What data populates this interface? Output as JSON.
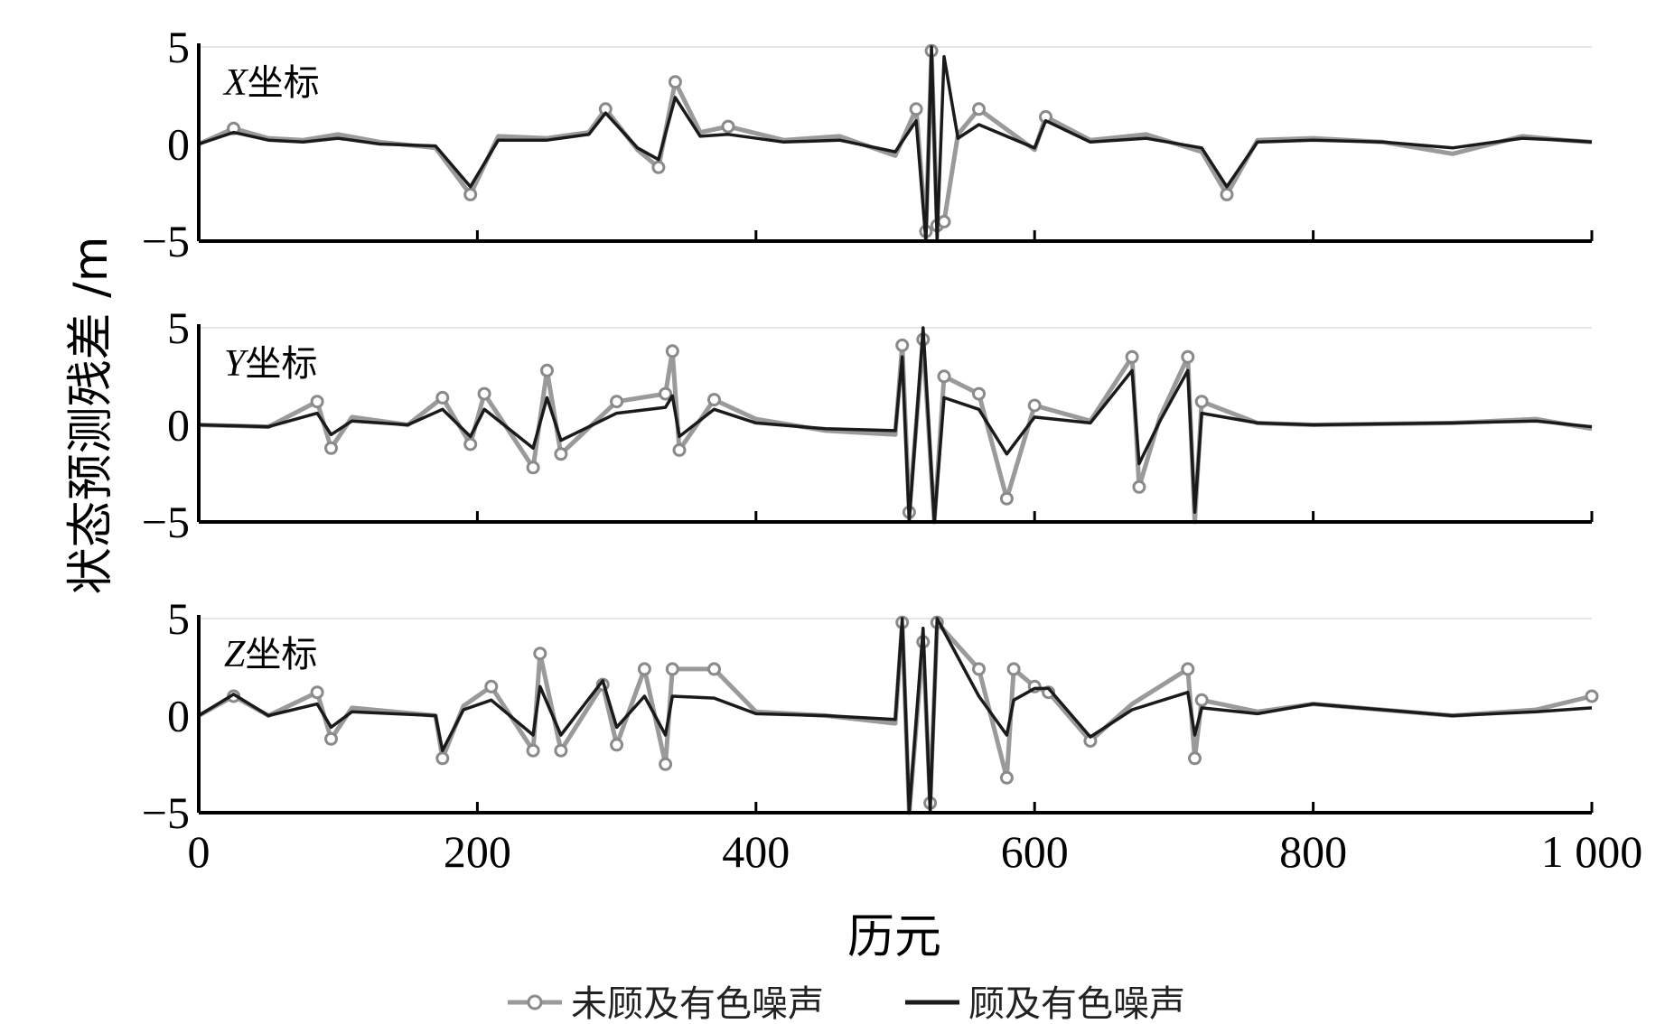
{
  "chart_data": {
    "type": "line",
    "ylabel": "状态预测残差 /m",
    "xlabel": "历元",
    "xlim": [
      0,
      1000
    ],
    "ylim": [
      -5,
      5
    ],
    "x_ticks": [
      "0",
      "200",
      "400",
      "600",
      "800",
      "1 000"
    ],
    "y_ticks": [
      "5",
      "0",
      "−5"
    ],
    "legend": {
      "placement": "bottom-center",
      "entries": [
        {
          "label": "未顾及有色噪声",
          "color": "#9a9a9a",
          "marker": "circle"
        },
        {
          "label": "顾及有色噪声",
          "color": "#1a1a1a",
          "marker": "none"
        }
      ]
    },
    "panels": [
      {
        "label_letter": "X",
        "label_text": "坐标",
        "series": [
          {
            "name": "未顾及有色噪声",
            "color": "#9a9a9a",
            "x": [
              0,
              25,
              50,
              75,
              100,
              130,
              170,
              195,
              215,
              250,
              280,
              292,
              315,
              330,
              342,
              360,
              380,
              420,
              460,
              500,
              515,
              522,
              526,
              530,
              535,
              545,
              560,
              600,
              608,
              640,
              680,
              720,
              738,
              760,
              800,
              850,
              900,
              950,
              980,
              1000
            ],
            "y": [
              0,
              0.8,
              0.3,
              0.2,
              0.5,
              0.1,
              -0.2,
              -2.6,
              0.4,
              0.3,
              0.6,
              1.8,
              -0.3,
              -1.2,
              3.2,
              0.6,
              0.9,
              0.2,
              0.4,
              -0.6,
              1.8,
              -4.5,
              4.8,
              -4.2,
              -4.0,
              0.5,
              1.8,
              -0.3,
              1.4,
              0.2,
              0.5,
              -0.4,
              -2.6,
              0.2,
              0.3,
              0.1,
              -0.5,
              0.4,
              0.2,
              0.1
            ]
          },
          {
            "name": "顾及有色噪声",
            "color": "#1a1a1a",
            "x": [
              0,
              25,
              50,
              75,
              100,
              130,
              170,
              195,
              215,
              250,
              280,
              292,
              315,
              330,
              342,
              360,
              380,
              420,
              460,
              500,
              515,
              522,
              526,
              530,
              535,
              545,
              560,
              600,
              608,
              640,
              680,
              720,
              738,
              760,
              800,
              850,
              900,
              950,
              980,
              1000
            ],
            "y": [
              0,
              0.6,
              0.2,
              0.1,
              0.3,
              0.0,
              -0.1,
              -2.2,
              0.2,
              0.2,
              0.5,
              1.6,
              -0.2,
              -0.8,
              2.4,
              0.4,
              0.5,
              0.1,
              0.2,
              -0.4,
              1.2,
              -5,
              5,
              -5,
              4.5,
              0.3,
              1.0,
              -0.2,
              1.2,
              0.1,
              0.3,
              -0.2,
              -2.2,
              0.1,
              0.2,
              0.1,
              -0.2,
              0.3,
              0.2,
              0.1
            ]
          }
        ]
      },
      {
        "label_letter": "Y",
        "label_text": "坐标",
        "series": [
          {
            "name": "未顾及有色噪声",
            "color": "#9a9a9a",
            "x": [
              0,
              50,
              85,
              95,
              110,
              150,
              175,
              195,
              205,
              240,
              250,
              260,
              300,
              335,
              340,
              345,
              370,
              400,
              450,
              500,
              505,
              510,
              520,
              528,
              535,
              560,
              580,
              600,
              640,
              670,
              675,
              690,
              710,
              715,
              720,
              760,
              800,
              900,
              960,
              1000
            ],
            "y": [
              0,
              -0.1,
              1.2,
              -1.2,
              0.4,
              0,
              1.4,
              -1.0,
              1.6,
              -2.2,
              2.8,
              -1.5,
              1.2,
              1.6,
              3.8,
              -1.3,
              1.3,
              0.3,
              -0.3,
              -0.5,
              4.1,
              -4.5,
              4.4,
              -5,
              2.5,
              1.6,
              -3.8,
              1.0,
              0.2,
              3.5,
              -3.2,
              0.4,
              3.5,
              -5,
              1.2,
              0.1,
              0,
              0.1,
              0.3,
              -0.2
            ]
          },
          {
            "name": "顾及有色噪声",
            "color": "#1a1a1a",
            "x": [
              0,
              50,
              85,
              95,
              110,
              150,
              175,
              195,
              205,
              240,
              250,
              260,
              300,
              335,
              340,
              345,
              370,
              400,
              450,
              500,
              505,
              510,
              520,
              528,
              535,
              560,
              580,
              600,
              640,
              670,
              675,
              690,
              710,
              715,
              720,
              760,
              800,
              900,
              960,
              1000
            ],
            "y": [
              0,
              -0.1,
              0.6,
              -0.5,
              0.2,
              0,
              0.8,
              -0.6,
              0.8,
              -1.2,
              1.4,
              -0.8,
              0.6,
              0.9,
              1.5,
              -0.6,
              0.8,
              0.1,
              -0.2,
              -0.3,
              3.5,
              -5,
              5,
              -5,
              1.4,
              0.8,
              -1.5,
              0.4,
              0.1,
              2.8,
              -2.0,
              0.2,
              2.8,
              -4.5,
              0.6,
              0.1,
              0,
              0.1,
              0.2,
              -0.1
            ]
          }
        ]
      },
      {
        "label_letter": "Z",
        "label_text": "坐标",
        "series": [
          {
            "name": "未顾及有色噪声",
            "color": "#9a9a9a",
            "x": [
              0,
              25,
              50,
              85,
              95,
              110,
              170,
              175,
              190,
              210,
              240,
              245,
              260,
              290,
              300,
              320,
              335,
              340,
              370,
              400,
              450,
              500,
              505,
              510,
              520,
              525,
              530,
              560,
              580,
              585,
              600,
              610,
              640,
              670,
              710,
              715,
              720,
              760,
              800,
              900,
              960,
              1000
            ],
            "y": [
              0,
              1.0,
              0,
              1.2,
              -1.2,
              0.4,
              0,
              -2.2,
              0.5,
              1.5,
              -1.8,
              3.2,
              -1.8,
              1.6,
              -1.5,
              2.4,
              -2.5,
              2.4,
              2.4,
              0.2,
              0,
              -0.4,
              4.8,
              -5,
              3.8,
              -4.5,
              4.8,
              2.4,
              -3.2,
              2.4,
              1.5,
              1.2,
              -1.3,
              0.6,
              2.4,
              -2.2,
              0.8,
              0.2,
              0.6,
              0,
              0.3,
              1.0
            ]
          },
          {
            "name": "顾及有色噪声",
            "color": "#1a1a1a",
            "x": [
              0,
              25,
              50,
              85,
              95,
              110,
              170,
              175,
              190,
              210,
              240,
              245,
              260,
              290,
              300,
              320,
              335,
              340,
              370,
              400,
              450,
              500,
              505,
              510,
              520,
              525,
              530,
              560,
              580,
              585,
              600,
              610,
              640,
              670,
              710,
              715,
              720,
              760,
              800,
              900,
              960,
              1000
            ],
            "y": [
              0,
              1.1,
              0,
              0.6,
              -0.6,
              0.2,
              0,
              -1.8,
              0.3,
              0.8,
              -1.0,
              1.5,
              -1.0,
              1.8,
              -0.6,
              1.0,
              -1.0,
              1.0,
              0.9,
              0.1,
              0,
              -0.2,
              5,
              -5,
              4.5,
              -5,
              5,
              1.0,
              -1.0,
              0.8,
              1.4,
              1.4,
              -1.1,
              0.3,
              1.2,
              -1.0,
              0.4,
              0.1,
              0.6,
              0,
              0.2,
              0.4
            ]
          }
        ]
      }
    ]
  }
}
